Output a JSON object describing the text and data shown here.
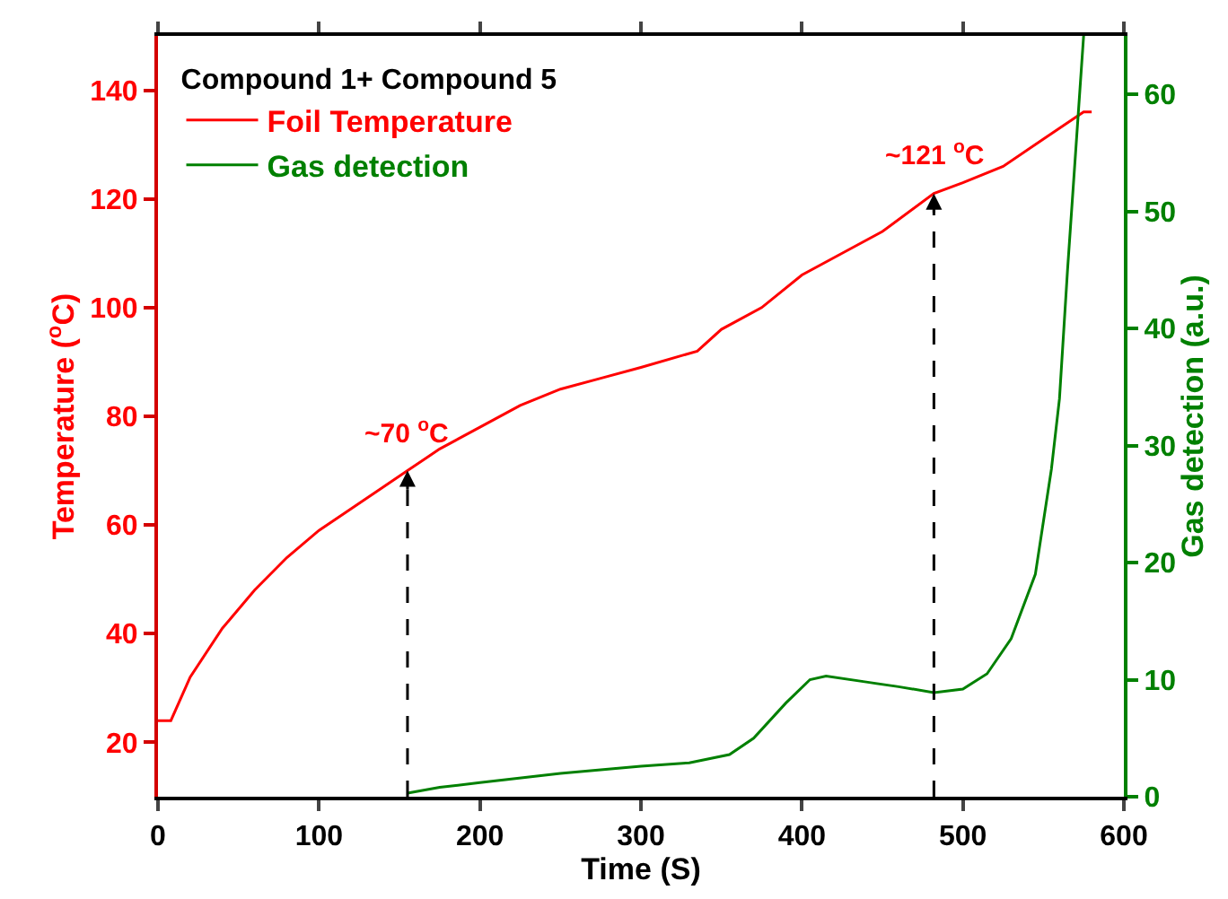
{
  "chart_data": {
    "type": "line",
    "xlabel": "Time (S)",
    "ylabel": "Temperature ($^{o}$C)",
    "y2label": "Gas detection (a.u.)",
    "legend_title": "Compound 1+ Compound 5",
    "xlim": [
      0,
      600
    ],
    "xticks": [
      0,
      100,
      200,
      300,
      400,
      500,
      600
    ],
    "ylim": [
      10,
      150
    ],
    "yticks": [
      20,
      40,
      60,
      80,
      100,
      120,
      140
    ],
    "y2lim": [
      0,
      65
    ],
    "y2ticks": [
      0,
      10,
      20,
      30,
      40,
      50,
      60
    ],
    "legend": "top left",
    "marker": "none",
    "line_style": "solid",
    "series": [
      {
        "name": "Foil Temperature",
        "color": "#ff0000",
        "x": [
          0,
          8,
          20,
          40,
          60,
          80,
          100,
          120,
          140,
          155,
          175,
          200,
          225,
          250,
          275,
          300,
          335,
          350,
          375,
          400,
          425,
          450,
          482,
          500,
          525,
          550,
          575,
          580
        ],
        "values": [
          24,
          24,
          32,
          41,
          48,
          54,
          59,
          63,
          67,
          70,
          74,
          78,
          82,
          85,
          87,
          89,
          92,
          96,
          100,
          106,
          110,
          114,
          121,
          123,
          126,
          131,
          136,
          136
        ]
      },
      {
        "name": "Gas detection",
        "color": "#008000",
        "axis": "y2",
        "x": [
          155,
          175,
          200,
          250,
          300,
          330,
          355,
          370,
          390,
          405,
          415,
          440,
          460,
          482,
          500,
          515,
          530,
          545,
          555,
          560,
          565,
          570,
          575
        ],
        "values": [
          0.3,
          0.8,
          1.2,
          2,
          2.6,
          2.9,
          3.6,
          5,
          8,
          10,
          10.3,
          9.8,
          9.4,
          8.9,
          9.2,
          10.5,
          13.5,
          19,
          28,
          34,
          45,
          55,
          65
        ]
      }
    ],
    "annotations": [
      {
        "text": "~70 $^{o}$C",
        "x": 155,
        "y": 70
      },
      {
        "text": "~121 $^{o}$C",
        "x": 482,
        "y": 121
      }
    ]
  }
}
